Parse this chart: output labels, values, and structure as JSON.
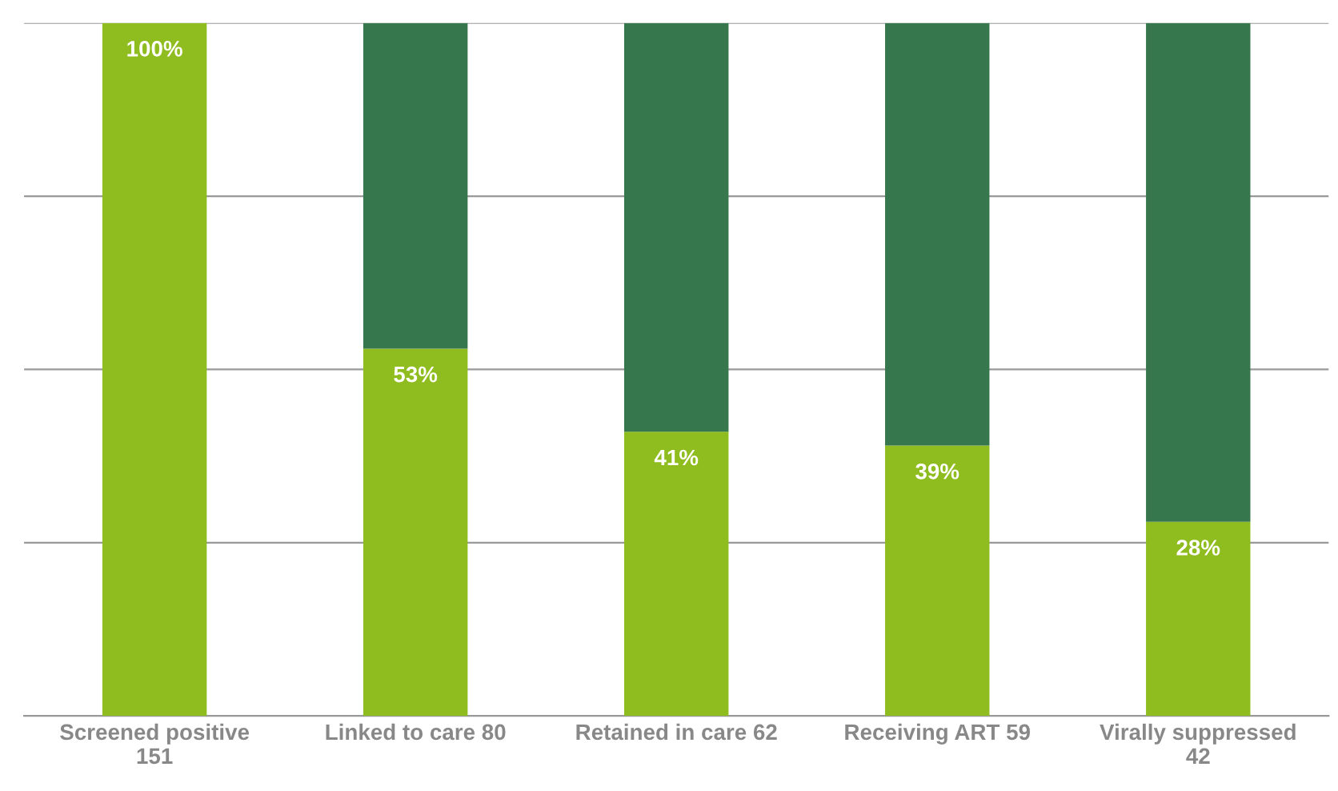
{
  "chart_data": {
    "type": "bar",
    "stacked": true,
    "categories": [
      "Screened positive\n151",
      "Linked to care 80",
      "Retained in care 62",
      "Receiving ART 59",
      "Virally suppressed\n42"
    ],
    "series": [
      {
        "color": "#8fbc1e",
        "values": [
          100,
          53,
          41,
          39,
          28
        ],
        "value_labels": [
          "100%",
          "53%",
          "41%",
          "39%",
          "28%"
        ]
      },
      {
        "color": "#37774d",
        "values": [
          0,
          47,
          59,
          61,
          72
        ]
      }
    ],
    "ylim": [
      0,
      100
    ],
    "yticks": [
      {
        "value": 0,
        "label": null
      },
      {
        "value": 25,
        "label": null
      },
      {
        "value": 50,
        "label": null
      },
      {
        "value": 75,
        "label": null
      },
      {
        "value": 100,
        "label": null
      }
    ],
    "grid": "y",
    "tick_labels": "x"
  }
}
